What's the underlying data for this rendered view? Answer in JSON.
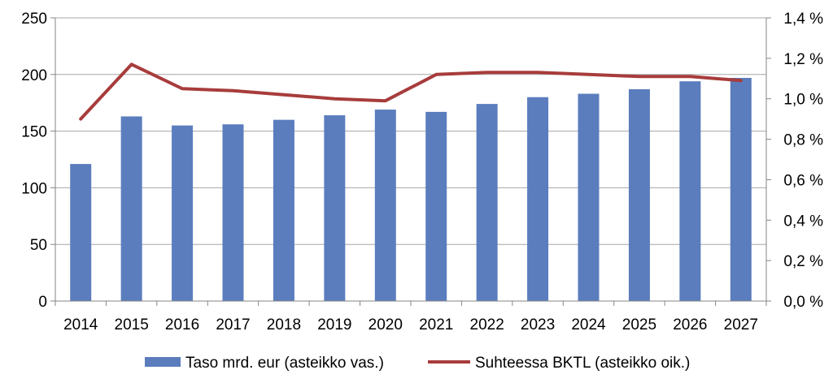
{
  "chart_data": {
    "type": "bar+line",
    "categories": [
      "2014",
      "2015",
      "2016",
      "2017",
      "2018",
      "2019",
      "2020",
      "2021",
      "2022",
      "2023",
      "2024",
      "2025",
      "2026",
      "2027"
    ],
    "series": [
      {
        "name": "Taso mrd. eur (asteikko vas.)",
        "type": "bar",
        "axis": "left",
        "color": "#5B7DBD",
        "values": [
          121,
          163,
          155,
          156,
          160,
          164,
          169,
          167,
          174,
          180,
          183,
          187,
          194,
          197
        ]
      },
      {
        "name": "Suhteessa BKTL (asteikko oik.)",
        "type": "line",
        "axis": "right",
        "color": "#A83C3C",
        "values": [
          0.9,
          1.17,
          1.05,
          1.04,
          1.02,
          1.0,
          0.99,
          1.12,
          1.13,
          1.13,
          1.12,
          1.11,
          1.11,
          1.09
        ]
      }
    ],
    "left_axis": {
      "ylim": [
        0,
        250
      ],
      "ticks": [
        0,
        50,
        100,
        150,
        200,
        250
      ],
      "tick_labels": [
        "0",
        "50",
        "100",
        "150",
        "200",
        "250"
      ]
    },
    "right_axis": {
      "ylim": [
        0,
        1.4
      ],
      "ticks": [
        0,
        0.2,
        0.4,
        0.6,
        0.8,
        1.0,
        1.2,
        1.4
      ],
      "tick_labels": [
        "0,0 %",
        "0,2 %",
        "0,4 %",
        "0,6 %",
        "0,8 %",
        "1,0 %",
        "1,2 %",
        "1,4 %"
      ]
    },
    "grid": true,
    "legend": "bottom"
  }
}
